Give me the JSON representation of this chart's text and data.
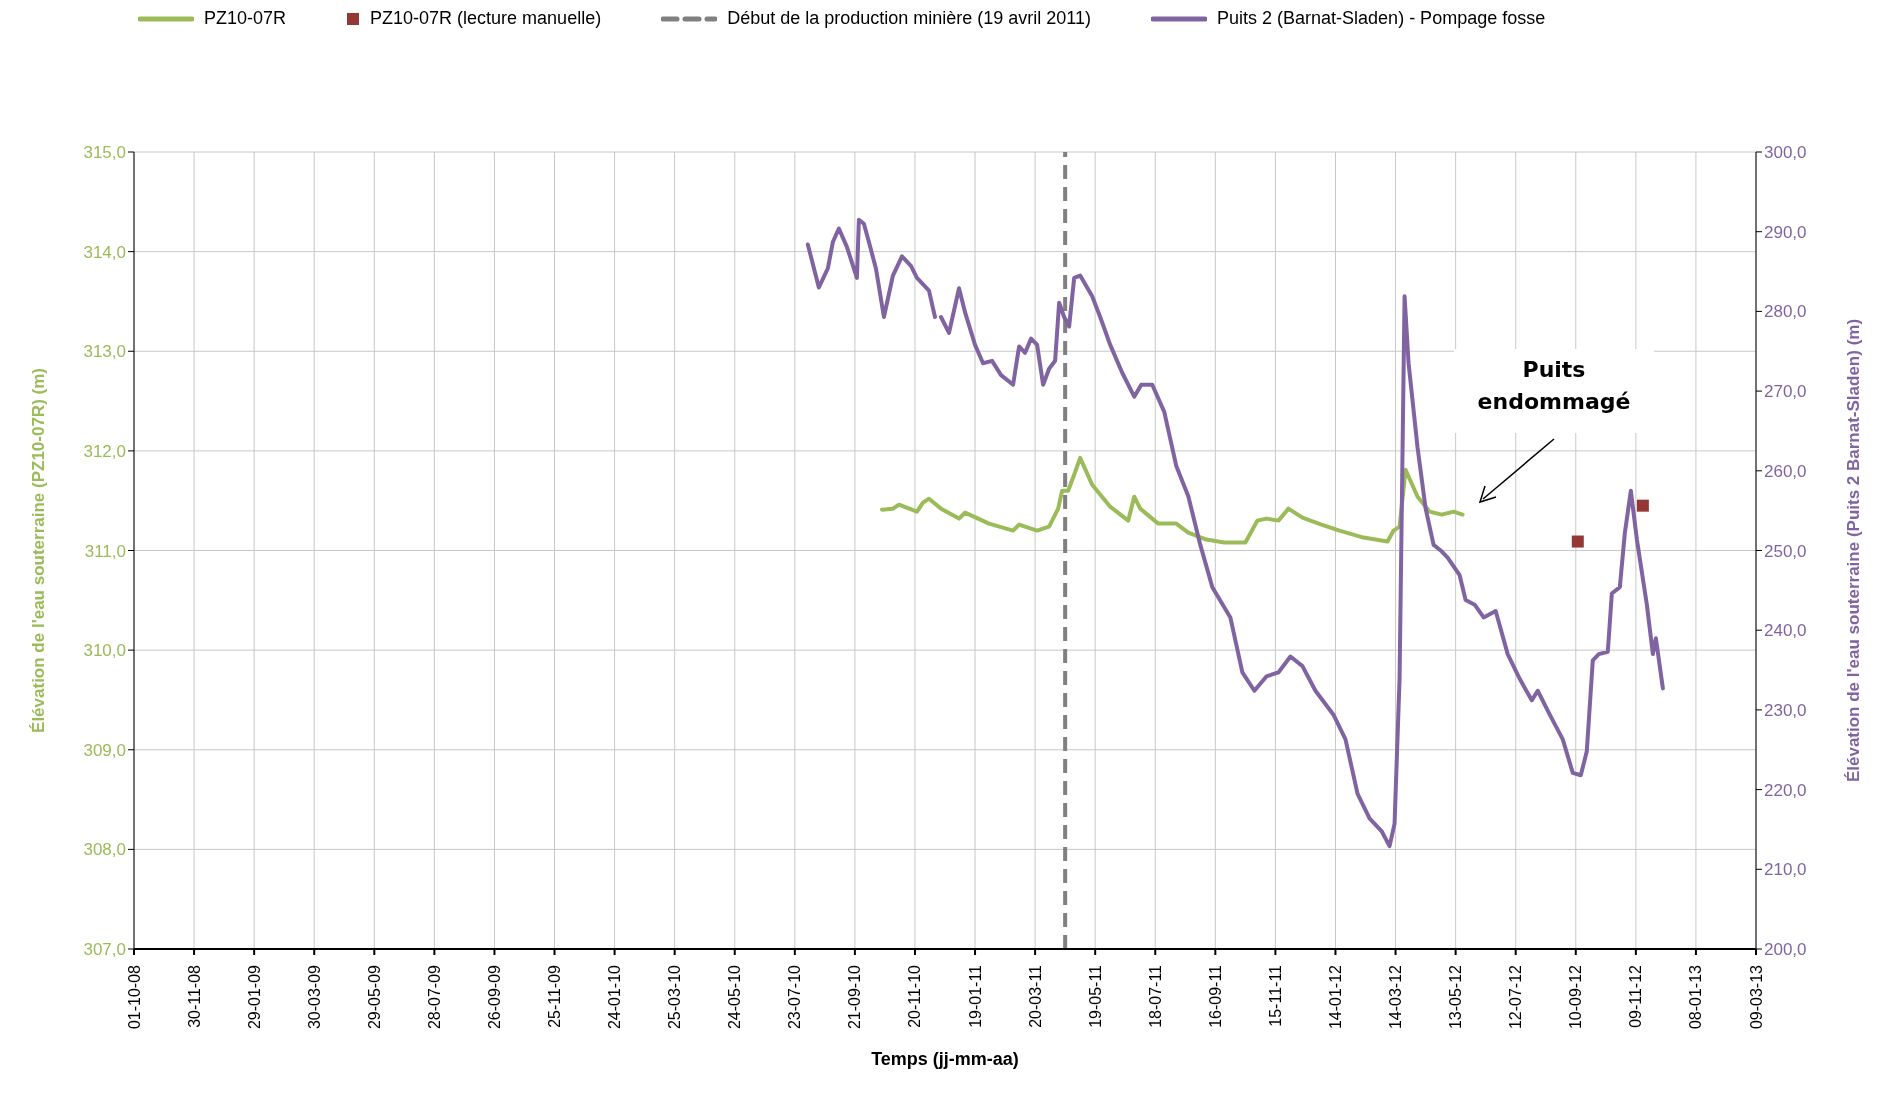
{
  "chart_data": {
    "type": "line",
    "xlabel": "Temps (jj-mm-aa)",
    "ylabel": "Élévation de l'eau souterraine (PZ10-07R) (m)",
    "y2label": "Élévation de l'eau souterraine (Puits 2 Barnat-Sladen) (m)",
    "legend": "top",
    "grid": true,
    "xlim": [
      "2008-10-01",
      "2013-03-09"
    ],
    "xticks": [
      {
        "value": "2008-10-01",
        "label": "01-10-08"
      },
      {
        "value": "2008-11-30",
        "label": "30-11-08"
      },
      {
        "value": "2009-01-29",
        "label": "29-01-09"
      },
      {
        "value": "2009-03-30",
        "label": "30-03-09"
      },
      {
        "value": "2009-05-29",
        "label": "29-05-09"
      },
      {
        "value": "2009-07-28",
        "label": "28-07-09"
      },
      {
        "value": "2009-09-26",
        "label": "26-09-09"
      },
      {
        "value": "2009-11-25",
        "label": "25-11-09"
      },
      {
        "value": "2010-01-24",
        "label": "24-01-10"
      },
      {
        "value": "2010-03-25",
        "label": "25-03-10"
      },
      {
        "value": "2010-05-24",
        "label": "24-05-10"
      },
      {
        "value": "2010-07-23",
        "label": "23-07-10"
      },
      {
        "value": "2010-09-21",
        "label": "21-09-10"
      },
      {
        "value": "2010-11-20",
        "label": "20-11-10"
      },
      {
        "value": "2011-01-19",
        "label": "19-01-11"
      },
      {
        "value": "2011-03-20",
        "label": "20-03-11"
      },
      {
        "value": "2011-05-19",
        "label": "19-05-11"
      },
      {
        "value": "2011-07-18",
        "label": "18-07-11"
      },
      {
        "value": "2011-09-16",
        "label": "16-09-11"
      },
      {
        "value": "2011-11-15",
        "label": "15-11-11"
      },
      {
        "value": "2012-01-14",
        "label": "14-01-12"
      },
      {
        "value": "2012-03-14",
        "label": "14-03-12"
      },
      {
        "value": "2012-05-13",
        "label": "13-05-12"
      },
      {
        "value": "2012-07-12",
        "label": "12-07-12"
      },
      {
        "value": "2012-09-10",
        "label": "10-09-12"
      },
      {
        "value": "2012-11-09",
        "label": "09-11-12"
      },
      {
        "value": "2013-01-08",
        "label": "08-01-13"
      },
      {
        "value": "2013-03-09",
        "label": "09-03-13"
      }
    ],
    "ylim": [
      307,
      315
    ],
    "yticks": [
      {
        "value": 307,
        "label": "307,0"
      },
      {
        "value": 308,
        "label": "308,0"
      },
      {
        "value": 309,
        "label": "309,0"
      },
      {
        "value": 310,
        "label": "310,0"
      },
      {
        "value": 311,
        "label": "311,0"
      },
      {
        "value": 312,
        "label": "312,0"
      },
      {
        "value": 313,
        "label": "313,0"
      },
      {
        "value": 314,
        "label": "314,0"
      },
      {
        "value": 315,
        "label": "315,0"
      }
    ],
    "y2lim": [
      200,
      300
    ],
    "y2ticks": [
      {
        "value": 200,
        "label": "200,0"
      },
      {
        "value": 210,
        "label": "210,0"
      },
      {
        "value": 220,
        "label": "220,0"
      },
      {
        "value": 230,
        "label": "230,0"
      },
      {
        "value": 240,
        "label": "240,0"
      },
      {
        "value": 250,
        "label": "250,0"
      },
      {
        "value": 260,
        "label": "260,0"
      },
      {
        "value": 270,
        "label": "270,0"
      },
      {
        "value": 280,
        "label": "280,0"
      },
      {
        "value": 290,
        "label": "290,0"
      },
      {
        "value": 300,
        "label": "300,0"
      }
    ],
    "ref_lines": [
      {
        "axis": "x",
        "value": "2011-04-19",
        "label": "Début de la production minière (19 avril 2011)",
        "color": "#808080",
        "line_style": "dashed"
      }
    ],
    "annotations": [
      "Puits endommagé"
    ],
    "series": [
      {
        "name": "PZ10-07R",
        "marker": "none",
        "color": "#9bbb59",
        "x": [
          "2010-10-18",
          "2010-10-29",
          "2010-11-04",
          "2010-11-22",
          "2010-11-28",
          "2010-12-04",
          "2010-12-16",
          "2011-01-03",
          "2011-01-09",
          "2011-02-02",
          "2011-02-26",
          "2011-03-04",
          "2011-03-22",
          "2011-04-03",
          "2011-04-12",
          "2011-04-16",
          "2011-04-22",
          "2011-04-28",
          "2011-05-04",
          "2011-05-16",
          "2011-06-03",
          "2011-06-21",
          "2011-06-27",
          "2011-07-03",
          "2011-07-21",
          "2011-08-08",
          "2011-08-20",
          "2011-09-07",
          "2011-09-25",
          "2011-10-07",
          "2011-10-16",
          "2011-10-28",
          "2011-11-06",
          "2011-11-18",
          "2011-11-28",
          "2011-12-12",
          "2011-12-31",
          "2012-01-18",
          "2012-02-11",
          "2012-03-06",
          "2012-03-12",
          "2012-03-18",
          "2012-03-24",
          "2012-04-05",
          "2012-04-17",
          "2012-04-29",
          "2012-05-11",
          "2012-05-20"
        ],
        "values": [
          311.41,
          311.42,
          311.46,
          311.39,
          311.48,
          311.52,
          311.42,
          311.32,
          311.38,
          311.27,
          311.2,
          311.26,
          311.2,
          311.24,
          311.42,
          311.6,
          311.6,
          311.76,
          311.93,
          311.66,
          311.44,
          311.3,
          311.54,
          311.42,
          311.27,
          311.27,
          311.18,
          311.11,
          311.08,
          311.08,
          311.08,
          311.3,
          311.32,
          311.3,
          311.42,
          311.33,
          311.26,
          311.2,
          311.13,
          311.09,
          311.2,
          311.24,
          311.81,
          311.54,
          311.39,
          311.36,
          311.39,
          311.36
        ]
      },
      {
        "name": "PZ10-07R (lecture manuelle)",
        "type": "scatter",
        "marker": "square",
        "color": "#953735",
        "x": [
          "2012-09-12",
          "2012-11-16"
        ],
        "values": [
          311.09,
          311.45
        ]
      },
      {
        "name": "Puits 2 (Barnat-Sladen) - Pompage fosse",
        "marker": "none",
        "axis": "y2",
        "color": "#8064a2",
        "x": [
          "2010-08-05",
          "2010-08-16",
          "2010-08-25",
          "2010-08-30",
          "2010-09-05",
          "2010-09-13",
          "2010-09-23",
          "2010-09-25",
          "2010-09-30",
          "2010-10-05",
          "2010-10-12",
          "2010-10-20",
          "2010-10-29",
          "2010-11-07",
          "2010-11-16",
          "2010-11-22",
          "2010-12-04",
          "2010-12-10",
          "2010-12-12",
          "2010-12-16",
          "2010-12-24",
          "2011-01-03",
          "2011-01-09",
          "2011-01-19",
          "2011-01-27",
          "2011-02-05",
          "2011-02-14",
          "2011-02-26",
          "2011-03-04",
          "2011-03-10",
          "2011-03-16",
          "2011-03-22",
          "2011-03-28",
          "2011-04-03",
          "2011-04-09",
          "2011-04-13",
          "2011-04-18",
          "2011-04-23",
          "2011-04-28",
          "2011-05-04",
          "2011-05-16",
          "2011-05-24",
          "2011-06-03",
          "2011-06-15",
          "2011-06-27",
          "2011-07-04",
          "2011-07-15",
          "2011-07-27",
          "2011-08-08",
          "2011-08-20",
          "2011-09-01",
          "2011-09-13",
          "2011-10-01",
          "2011-10-13",
          "2011-10-25",
          "2011-11-06",
          "2011-11-18",
          "2011-11-30",
          "2011-12-12",
          "2011-12-25",
          "2012-01-12",
          "2012-01-24",
          "2012-02-05",
          "2012-02-17",
          "2012-02-29",
          "2012-03-08",
          "2012-03-13",
          "2012-03-18",
          "2012-03-23",
          "2012-03-27",
          "2012-04-05",
          "2012-04-13",
          "2012-04-21",
          "2012-04-29",
          "2012-05-05",
          "2012-05-17",
          "2012-05-23",
          "2012-06-01",
          "2012-06-10",
          "2012-06-22",
          "2012-07-04",
          "2012-07-16",
          "2012-07-28",
          "2012-08-03",
          "2012-08-15",
          "2012-08-28",
          "2012-09-07",
          "2012-09-15",
          "2012-09-21",
          "2012-09-27",
          "2012-10-03",
          "2012-10-12",
          "2012-10-16",
          "2012-10-24",
          "2012-10-29",
          "2012-11-04",
          "2012-11-10",
          "2012-11-20",
          "2012-11-26",
          "2012-11-29",
          "2012-12-06"
        ],
        "values": [
          288.4,
          283.0,
          285.4,
          288.7,
          290.4,
          288.1,
          284.2,
          291.5,
          291.0,
          288.7,
          285.4,
          279.3,
          284.5,
          286.9,
          285.7,
          284.2,
          282.6,
          279.3,
          null,
          279.3,
          277.3,
          282.9,
          279.9,
          275.8,
          273.5,
          273.8,
          272.0,
          270.8,
          275.6,
          274.8,
          276.6,
          275.8,
          270.8,
          272.8,
          273.8,
          281.1,
          279.3,
          278.1,
          284.2,
          284.5,
          281.9,
          279.3,
          275.8,
          272.3,
          269.3,
          270.8,
          270.8,
          267.4,
          260.6,
          256.8,
          250.7,
          245.4,
          241.6,
          234.7,
          232.4,
          234.2,
          234.7,
          236.7,
          235.5,
          232.4,
          229.4,
          226.3,
          219.5,
          216.4,
          214.8,
          212.9,
          215.7,
          233.9,
          281.9,
          273.5,
          262.9,
          255.3,
          250.7,
          249.9,
          249.1,
          246.9,
          243.8,
          243.2,
          241.6,
          242.4,
          237.0,
          233.9,
          231.2,
          232.4,
          229.4,
          226.3,
          222.1,
          221.8,
          224.8,
          236.2,
          237.0,
          237.3,
          244.6,
          245.4,
          252.2,
          257.5,
          251.4,
          243.2,
          237.0,
          239.0,
          232.7
        ]
      }
    ]
  }
}
